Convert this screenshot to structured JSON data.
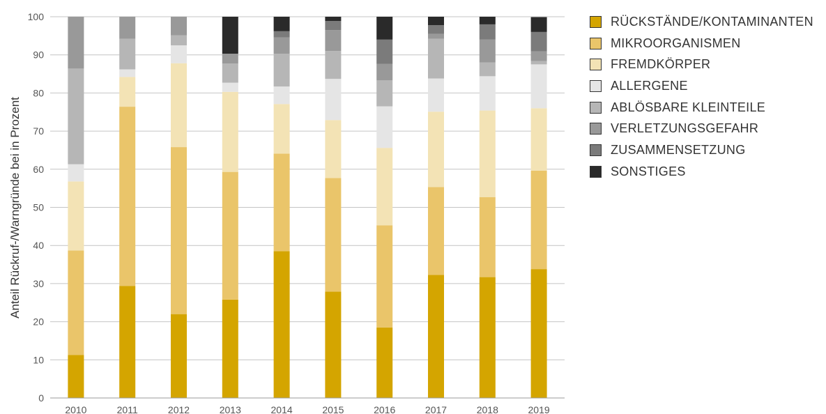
{
  "chart_data": {
    "type": "bar",
    "stacked": true,
    "title": "",
    "xlabel": "",
    "ylabel": "Anteil Rückruf-/Warngründe bei in Prozent",
    "ylim": [
      0,
      100
    ],
    "yticks": [
      "0",
      "10",
      "20",
      "30",
      "40",
      "50",
      "60",
      "70",
      "80",
      "90",
      "100"
    ],
    "grid": "horizontal",
    "legend_position": "right",
    "categories": [
      "2010",
      "2011",
      "2012",
      "2013",
      "2014",
      "2015",
      "2016",
      "2017",
      "2018",
      "2019"
    ],
    "series": [
      {
        "name": "RÜCKSTÄNDE/KONTAMINANTEN",
        "color": "#D4A500",
        "values": [
          11.3,
          29.4,
          22.0,
          25.8,
          38.5,
          27.9,
          18.5,
          32.3,
          31.7,
          33.8
        ]
      },
      {
        "name": "MIKROORGANISMEN",
        "color": "#EAC56A",
        "values": [
          27.4,
          47.0,
          43.8,
          33.5,
          25.6,
          29.8,
          26.8,
          23.0,
          21.0,
          25.8
        ]
      },
      {
        "name": "FREMDKÖRPER",
        "color": "#F3E3B5",
        "values": [
          18.1,
          7.8,
          22.0,
          21.0,
          13.0,
          15.2,
          20.3,
          19.8,
          22.7,
          16.4
        ]
      },
      {
        "name": "ALLERGENE",
        "color": "#E5E5E5",
        "values": [
          4.5,
          2.0,
          4.7,
          2.4,
          4.6,
          10.8,
          10.9,
          8.7,
          9.0,
          11.5
        ]
      },
      {
        "name": "ABLÖSBARE KLEINTEILE",
        "color": "#B6B6B6",
        "values": [
          25.1,
          8.0,
          2.6,
          5.0,
          8.6,
          7.3,
          6.8,
          10.4,
          3.6,
          0.9
        ]
      },
      {
        "name": "VERLETZUNGSGEFAHR",
        "color": "#999999",
        "values": [
          13.6,
          5.8,
          4.9,
          2.6,
          4.3,
          5.5,
          4.3,
          1.3,
          6.0,
          2.5
        ]
      },
      {
        "name": "ZUSAMMENSETZUNG",
        "color": "#7B7B7B",
        "values": [
          0.0,
          0.0,
          0.0,
          0.0,
          1.6,
          2.4,
          6.4,
          2.3,
          4.0,
          5.1
        ]
      },
      {
        "name": "SONSTIGES",
        "color": "#2A2A2A",
        "values": [
          0.0,
          0.0,
          0.0,
          9.7,
          3.8,
          1.1,
          6.0,
          2.2,
          2.0,
          3.9
        ]
      }
    ]
  }
}
